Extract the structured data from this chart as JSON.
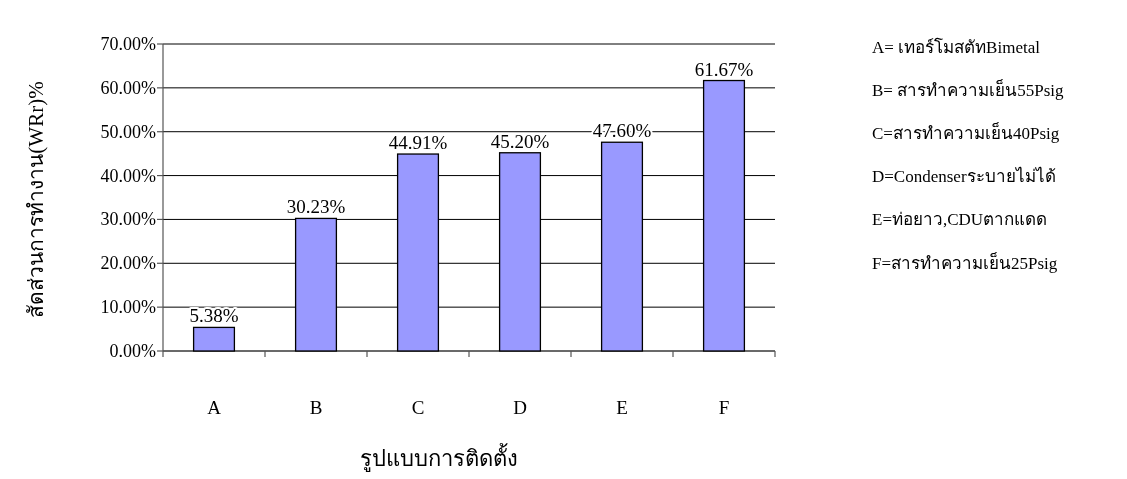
{
  "chart_data": {
    "type": "bar",
    "categories": [
      "A",
      "B",
      "C",
      "D",
      "E",
      "F"
    ],
    "values": [
      5.38,
      30.23,
      44.91,
      45.2,
      47.6,
      61.67
    ],
    "value_labels": [
      "5.38%",
      "30.23%",
      "44.91%",
      "45.20%",
      "47.60%",
      "61.67%"
    ],
    "color": "#9999ff",
    "ylim": [
      0,
      70
    ],
    "yticks": [
      {
        "value": 0,
        "label": "0.00%"
      },
      {
        "value": 10,
        "label": "10.00%"
      },
      {
        "value": 20,
        "label": "20.00%"
      },
      {
        "value": 30,
        "label": "30.00%"
      },
      {
        "value": 40,
        "label": "40.00%"
      },
      {
        "value": 50,
        "label": "50.00%"
      },
      {
        "value": 60,
        "label": "60.00%"
      },
      {
        "value": 70,
        "label": "70.00%"
      }
    ],
    "grid": "y",
    "xlabel": "รูปแบบการติดตั้ง",
    "ylabel": "สัดส่วนการทำงาน(WRr)%",
    "annotations": [
      "A= เทอร์โมสตัทBimetal",
      "B= สารทำความเย็น55Psig",
      "C=สารทำความเย็น40Psig",
      "D=Condenserระบายไม่ได้",
      "E=ท่อยาว,CDUตากแดด",
      "F=สารทำความเย็น25Psig"
    ]
  }
}
